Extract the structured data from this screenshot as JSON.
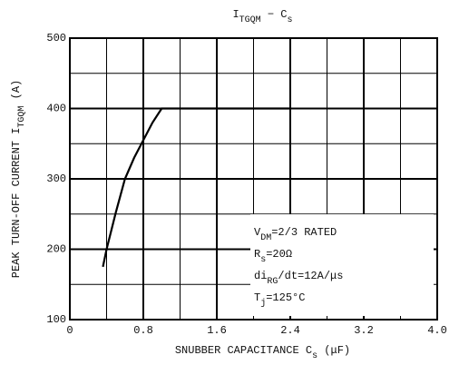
{
  "chart_data": {
    "type": "line",
    "title": [
      {
        "text": "I"
      },
      {
        "text": "TGQM",
        "sub": true
      },
      {
        "text": " − C"
      },
      {
        "text": "s",
        "sub": true
      }
    ],
    "x_label": [
      {
        "text": "SNUBBER CAPACITANCE  C"
      },
      {
        "text": "s",
        "sub": true
      },
      {
        "text": "  (μF)"
      }
    ],
    "y_label": [
      {
        "text": "PEAK TURN-OFF CURRENT  I"
      },
      {
        "text": "TGQM",
        "sub": true
      },
      {
        "text": " (A)"
      }
    ],
    "x": [
      0.36,
      0.4,
      0.5,
      0.6,
      0.7,
      0.8,
      0.9,
      1.0,
      1.6,
      2.4
    ],
    "series": [
      {
        "name": "ITGQM",
        "color": "#000000",
        "values": [
          175,
          200,
          252,
          300,
          330,
          355,
          380,
          400,
          400,
          400
        ]
      }
    ],
    "xlim": [
      0,
      4.0
    ],
    "xticks": [
      0,
      0.8,
      1.6,
      2.4,
      3.2,
      {
        "value": 4.0,
        "label": "4.0"
      }
    ],
    "xminorticks": [
      0.4,
      1.2,
      2.0,
      2.8,
      3.6
    ],
    "ylim": [
      100,
      500
    ],
    "yticks": [
      100,
      200,
      300,
      400,
      500
    ],
    "yminorticks": [
      150,
      250,
      350,
      450
    ],
    "grid": true,
    "annotations": [
      [
        {
          "text": "V"
        },
        {
          "text": "DM",
          "sub": true
        },
        {
          "text": "=2/3 RATED"
        }
      ],
      [
        {
          "text": "R"
        },
        {
          "text": "s",
          "sub": true
        },
        {
          "text": "=20Ω"
        }
      ],
      [
        {
          "text": "di"
        },
        {
          "text": "RG",
          "sub": true
        },
        {
          "text": "/dt=12A/μs"
        }
      ],
      [
        {
          "text": "T"
        },
        {
          "text": "j",
          "sub": true
        },
        {
          "text": "=125°C"
        }
      ]
    ]
  }
}
